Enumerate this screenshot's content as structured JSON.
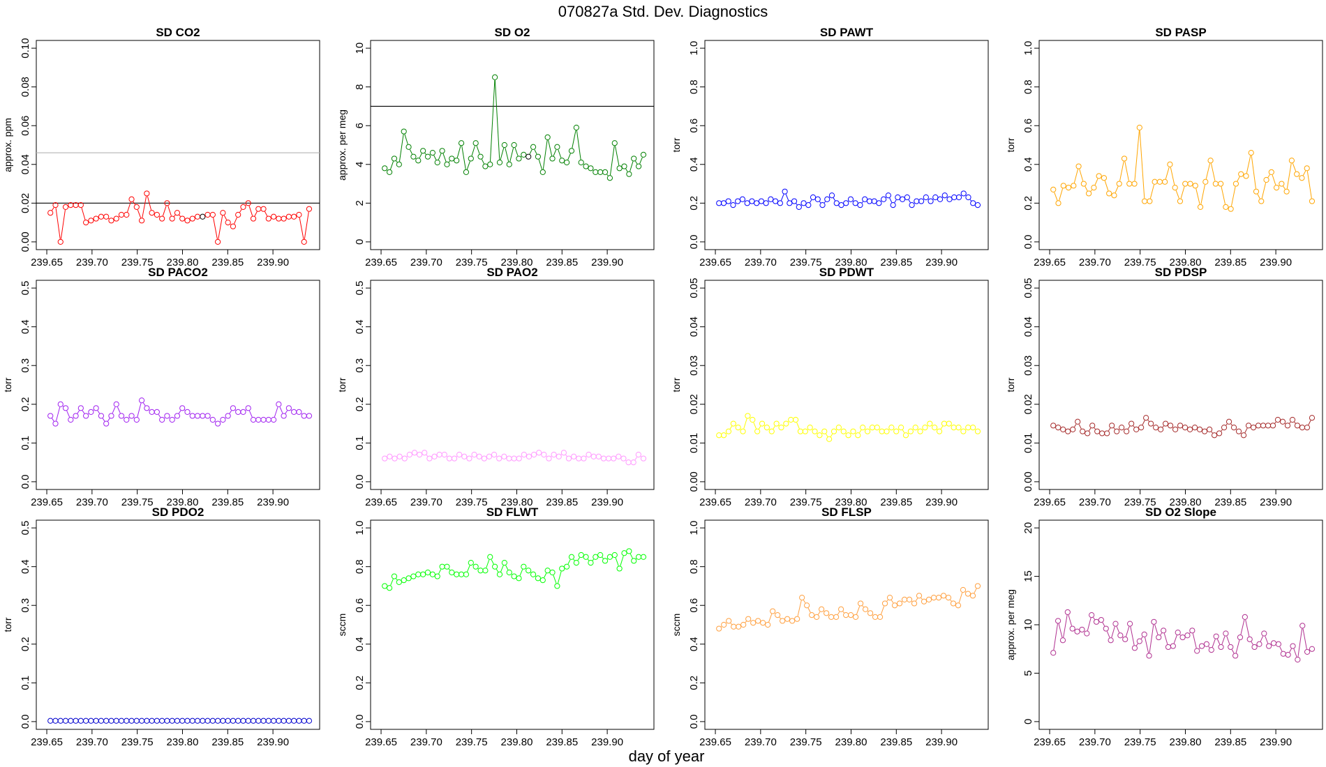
{
  "figure": {
    "title": "070827a   Std. Dev. Diagnostics",
    "xlabel": "day of year"
  },
  "chart_data": [
    {
      "type": "line",
      "title": "SD CO2",
      "ylabel": "approx. ppm",
      "color": "#ff0000",
      "ylim": [
        0,
        0.1
      ],
      "yticks": [
        "0.00",
        "0.02",
        "0.04",
        "0.06",
        "0.08",
        "0.10"
      ],
      "xlim": [
        239.65,
        239.94
      ],
      "xticks": [
        "239.65",
        "239.70",
        "239.75",
        "239.80",
        "239.85",
        "239.90"
      ],
      "hlines": [
        {
          "y": 0.02,
          "color": "#000000"
        },
        {
          "y": 0.046,
          "color": "#bbbbbb"
        }
      ],
      "highlight": [
        30,
        58
      ],
      "series": [
        {
          "values": [
            0.015,
            0.019,
            0.0,
            0.018,
            0.019,
            0.019,
            0.019,
            0.01,
            0.011,
            0.012,
            0.013,
            0.013,
            0.011,
            0.012,
            0.014,
            0.014,
            0.022,
            0.018,
            0.011,
            0.025,
            0.015,
            0.014,
            0.012,
            0.02,
            0.012,
            0.015,
            0.012,
            0.011,
            0.012,
            0.013,
            0.013,
            0.014,
            0.014,
            0.0,
            0.015,
            0.01,
            0.008,
            0.014,
            0.018,
            0.02,
            0.012,
            0.017,
            0.017,
            0.012,
            0.013,
            0.012,
            0.012,
            0.013,
            0.013,
            0.014,
            0.0,
            0.017
          ]
        }
      ]
    },
    {
      "type": "line",
      "title": "SD O2",
      "ylabel": "approx. per meg",
      "color": "#008000",
      "ylim": [
        0,
        10
      ],
      "yticks": [
        "0",
        "2",
        "4",
        "6",
        "8",
        "10"
      ],
      "xlim": [
        239.65,
        239.94
      ],
      "xticks": [
        "239.65",
        "239.70",
        "239.75",
        "239.80",
        "239.85",
        "239.90"
      ],
      "hlines": [
        {
          "y": 7,
          "color": "#000000"
        }
      ],
      "highlight": [
        30
      ],
      "series": [
        {
          "values": [
            3.8,
            3.6,
            4.3,
            4.0,
            5.7,
            4.9,
            4.4,
            4.2,
            4.7,
            4.4,
            4.6,
            4.1,
            4.7,
            4.0,
            4.3,
            4.2,
            5.1,
            3.6,
            4.3,
            5.1,
            4.4,
            3.9,
            4.0,
            8.5,
            4.1,
            5.0,
            4.0,
            5.0,
            4.3,
            4.5,
            4.4,
            4.9,
            4.4,
            3.6,
            5.4,
            4.3,
            4.9,
            4.2,
            4.1,
            4.7,
            5.9,
            4.1,
            3.9,
            3.8,
            3.6,
            3.6,
            3.6,
            3.3,
            5.1,
            3.8,
            3.9,
            3.5,
            4.3,
            3.9,
            4.5
          ]
        }
      ]
    },
    {
      "type": "line",
      "title": "SD PAWT",
      "ylabel": "torr",
      "color": "#0000ff",
      "ylim": [
        0,
        1
      ],
      "yticks": [
        "0.0",
        "0.2",
        "0.4",
        "0.6",
        "0.8",
        "1.0"
      ],
      "xlim": [
        239.65,
        239.94
      ],
      "xticks": [
        "239.65",
        "239.70",
        "239.75",
        "239.80",
        "239.85",
        "239.90"
      ],
      "series": [
        {
          "values": [
            0.2,
            0.2,
            0.21,
            0.19,
            0.21,
            0.22,
            0.2,
            0.21,
            0.2,
            0.21,
            0.2,
            0.22,
            0.21,
            0.2,
            0.26,
            0.2,
            0.21,
            0.18,
            0.2,
            0.19,
            0.23,
            0.22,
            0.19,
            0.22,
            0.24,
            0.2,
            0.19,
            0.2,
            0.22,
            0.2,
            0.19,
            0.22,
            0.21,
            0.21,
            0.2,
            0.22,
            0.24,
            0.19,
            0.23,
            0.22,
            0.23,
            0.19,
            0.21,
            0.21,
            0.23,
            0.21,
            0.23,
            0.22,
            0.24,
            0.22,
            0.23,
            0.23,
            0.25,
            0.23,
            0.2,
            0.19
          ]
        }
      ]
    },
    {
      "type": "line",
      "title": "SD PASP",
      "ylabel": "torr",
      "color": "#ffa500",
      "ylim": [
        0,
        1
      ],
      "yticks": [
        "0.0",
        "0.2",
        "0.4",
        "0.6",
        "0.8",
        "1.0"
      ],
      "xlim": [
        239.65,
        239.94
      ],
      "xticks": [
        "239.65",
        "239.70",
        "239.75",
        "239.80",
        "239.85",
        "239.90"
      ],
      "series": [
        {
          "values": [
            0.27,
            0.2,
            0.29,
            0.28,
            0.29,
            0.39,
            0.3,
            0.25,
            0.28,
            0.34,
            0.33,
            0.25,
            0.24,
            0.3,
            0.43,
            0.3,
            0.3,
            0.59,
            0.21,
            0.21,
            0.31,
            0.31,
            0.31,
            0.4,
            0.28,
            0.21,
            0.3,
            0.3,
            0.29,
            0.18,
            0.31,
            0.42,
            0.3,
            0.3,
            0.18,
            0.17,
            0.3,
            0.35,
            0.34,
            0.46,
            0.26,
            0.21,
            0.32,
            0.36,
            0.28,
            0.3,
            0.26,
            0.42,
            0.35,
            0.33,
            0.38,
            0.21
          ]
        }
      ]
    },
    {
      "type": "line",
      "title": "SD PACO2",
      "ylabel": "torr",
      "color": "#a020f0",
      "ylim": [
        0,
        0.5
      ],
      "yticks": [
        "0.0",
        "0.1",
        "0.2",
        "0.3",
        "0.4",
        "0.5"
      ],
      "xlim": [
        239.65,
        239.94
      ],
      "xticks": [
        "239.65",
        "239.70",
        "239.75",
        "239.80",
        "239.85",
        "239.90"
      ],
      "series": [
        {
          "values": [
            0.17,
            0.15,
            0.2,
            0.19,
            0.16,
            0.17,
            0.19,
            0.17,
            0.18,
            0.19,
            0.17,
            0.15,
            0.17,
            0.2,
            0.17,
            0.16,
            0.17,
            0.16,
            0.21,
            0.19,
            0.18,
            0.18,
            0.16,
            0.17,
            0.16,
            0.17,
            0.19,
            0.18,
            0.17,
            0.17,
            0.17,
            0.17,
            0.16,
            0.15,
            0.16,
            0.17,
            0.19,
            0.18,
            0.18,
            0.19,
            0.16,
            0.16,
            0.16,
            0.16,
            0.16,
            0.2,
            0.17,
            0.19,
            0.18,
            0.18,
            0.17,
            0.17
          ]
        }
      ]
    },
    {
      "type": "line",
      "title": "SD PAO2",
      "ylabel": "torr",
      "color": "#ff99ff",
      "ylim": [
        0,
        0.5
      ],
      "yticks": [
        "0.0",
        "0.1",
        "0.2",
        "0.3",
        "0.4",
        "0.5"
      ],
      "xlim": [
        239.65,
        239.94
      ],
      "xticks": [
        "239.65",
        "239.70",
        "239.75",
        "239.80",
        "239.85",
        "239.90"
      ],
      "series": [
        {
          "values": [
            0.06,
            0.065,
            0.06,
            0.065,
            0.06,
            0.07,
            0.075,
            0.07,
            0.075,
            0.06,
            0.065,
            0.07,
            0.07,
            0.06,
            0.06,
            0.07,
            0.065,
            0.06,
            0.07,
            0.065,
            0.06,
            0.065,
            0.07,
            0.06,
            0.065,
            0.06,
            0.06,
            0.06,
            0.07,
            0.065,
            0.07,
            0.075,
            0.07,
            0.06,
            0.07,
            0.065,
            0.075,
            0.06,
            0.065,
            0.06,
            0.06,
            0.07,
            0.065,
            0.065,
            0.06,
            0.06,
            0.06,
            0.065,
            0.06,
            0.05,
            0.05,
            0.07,
            0.06
          ]
        }
      ]
    },
    {
      "type": "line",
      "title": "SD PDWT",
      "ylabel": "torr",
      "color": "#ffff00",
      "ylim": [
        0,
        0.05
      ],
      "yticks": [
        "0.00",
        "0.01",
        "0.02",
        "0.03",
        "0.04",
        "0.05"
      ],
      "xlim": [
        239.65,
        239.94
      ],
      "xticks": [
        "239.65",
        "239.70",
        "239.75",
        "239.80",
        "239.85",
        "239.90"
      ],
      "series": [
        {
          "values": [
            0.012,
            0.012,
            0.013,
            0.015,
            0.014,
            0.013,
            0.017,
            0.016,
            0.013,
            0.015,
            0.014,
            0.013,
            0.015,
            0.014,
            0.015,
            0.016,
            0.016,
            0.013,
            0.013,
            0.014,
            0.013,
            0.012,
            0.013,
            0.011,
            0.013,
            0.014,
            0.013,
            0.012,
            0.013,
            0.012,
            0.014,
            0.013,
            0.014,
            0.014,
            0.013,
            0.013,
            0.014,
            0.013,
            0.014,
            0.012,
            0.013,
            0.014,
            0.013,
            0.014,
            0.015,
            0.014,
            0.013,
            0.015,
            0.015,
            0.014,
            0.014,
            0.013,
            0.014,
            0.014,
            0.013
          ]
        }
      ]
    },
    {
      "type": "line",
      "title": "SD PDSP",
      "ylabel": "torr",
      "color": "#a52a2a",
      "ylim": [
        0,
        0.05
      ],
      "yticks": [
        "0.00",
        "0.01",
        "0.02",
        "0.03",
        "0.04",
        "0.05"
      ],
      "xlim": [
        239.65,
        239.94
      ],
      "xticks": [
        "239.65",
        "239.70",
        "239.75",
        "239.80",
        "239.85",
        "239.90"
      ],
      "series": [
        {
          "values": [
            0.0145,
            0.014,
            0.0135,
            0.013,
            0.0135,
            0.0155,
            0.013,
            0.0125,
            0.0145,
            0.013,
            0.0125,
            0.0125,
            0.0145,
            0.013,
            0.014,
            0.013,
            0.015,
            0.0135,
            0.014,
            0.0165,
            0.015,
            0.014,
            0.0135,
            0.015,
            0.0145,
            0.0135,
            0.0145,
            0.014,
            0.0135,
            0.014,
            0.0135,
            0.013,
            0.0135,
            0.012,
            0.0125,
            0.014,
            0.0155,
            0.014,
            0.013,
            0.012,
            0.0145,
            0.014,
            0.0145,
            0.0145,
            0.0145,
            0.0145,
            0.016,
            0.0155,
            0.0145,
            0.016,
            0.0145,
            0.014,
            0.014,
            0.0165
          ]
        }
      ]
    },
    {
      "type": "line",
      "title": "SD PDO2",
      "ylabel": "torr",
      "color": "#0000cd",
      "ylim": [
        0,
        0.5
      ],
      "yticks": [
        "0.0",
        "0.1",
        "0.2",
        "0.3",
        "0.4",
        "0.5"
      ],
      "xlim": [
        239.65,
        239.94
      ],
      "xticks": [
        "239.65",
        "239.70",
        "239.75",
        "239.80",
        "239.85",
        "239.90"
      ],
      "series": [
        {
          "values": [
            0.002,
            0.002,
            0.002,
            0.002,
            0.002,
            0.002,
            0.002,
            0.002,
            0.002,
            0.002,
            0.002,
            0.002,
            0.002,
            0.002,
            0.002,
            0.002,
            0.002,
            0.002,
            0.002,
            0.002,
            0.002,
            0.002,
            0.002,
            0.002,
            0.002,
            0.002,
            0.002,
            0.002,
            0.002,
            0.002,
            0.002,
            0.002,
            0.002,
            0.002,
            0.002,
            0.002,
            0.002,
            0.002,
            0.002,
            0.002,
            0.002,
            0.002,
            0.002,
            0.002,
            0.002,
            0.002,
            0.002,
            0.002,
            0.002,
            0.002,
            0.002,
            0.002
          ]
        }
      ]
    },
    {
      "type": "line",
      "title": "SD FLWT",
      "ylabel": "sccm",
      "color": "#00ff00",
      "ylim": [
        0,
        1
      ],
      "yticks": [
        "0.0",
        "0.2",
        "0.4",
        "0.6",
        "0.8",
        "1.0"
      ],
      "xlim": [
        239.65,
        239.94
      ],
      "xticks": [
        "239.65",
        "239.70",
        "239.75",
        "239.80",
        "239.85",
        "239.90"
      ],
      "series": [
        {
          "values": [
            0.7,
            0.69,
            0.75,
            0.72,
            0.73,
            0.74,
            0.75,
            0.76,
            0.76,
            0.77,
            0.76,
            0.75,
            0.8,
            0.8,
            0.77,
            0.76,
            0.76,
            0.76,
            0.82,
            0.8,
            0.78,
            0.78,
            0.85,
            0.8,
            0.76,
            0.82,
            0.77,
            0.75,
            0.74,
            0.8,
            0.78,
            0.76,
            0.74,
            0.73,
            0.78,
            0.77,
            0.7,
            0.79,
            0.8,
            0.85,
            0.82,
            0.86,
            0.85,
            0.82,
            0.85,
            0.86,
            0.83,
            0.85,
            0.86,
            0.79,
            0.87,
            0.88,
            0.83,
            0.85,
            0.85
          ]
        }
      ]
    },
    {
      "type": "line",
      "title": "SD FLSP",
      "ylabel": "sccm",
      "color": "#ffa040",
      "ylim": [
        0,
        1
      ],
      "yticks": [
        "0.0",
        "0.2",
        "0.4",
        "0.6",
        "0.8",
        "1.0"
      ],
      "xlim": [
        239.65,
        239.94
      ],
      "xticks": [
        "239.65",
        "239.70",
        "239.75",
        "239.80",
        "239.85",
        "239.90"
      ],
      "series": [
        {
          "values": [
            0.48,
            0.5,
            0.52,
            0.49,
            0.49,
            0.5,
            0.53,
            0.51,
            0.52,
            0.51,
            0.5,
            0.57,
            0.55,
            0.52,
            0.53,
            0.52,
            0.53,
            0.64,
            0.6,
            0.55,
            0.54,
            0.58,
            0.56,
            0.54,
            0.54,
            0.58,
            0.55,
            0.55,
            0.54,
            0.61,
            0.58,
            0.56,
            0.54,
            0.54,
            0.61,
            0.64,
            0.6,
            0.61,
            0.63,
            0.63,
            0.61,
            0.65,
            0.62,
            0.63,
            0.64,
            0.64,
            0.65,
            0.64,
            0.61,
            0.6,
            0.68,
            0.66,
            0.65,
            0.7
          ]
        }
      ]
    },
    {
      "type": "line",
      "title": "SD O2 Slope",
      "ylabel": "approx. per meg",
      "color": "#b03090",
      "ylim": [
        0,
        20
      ],
      "yticks": [
        "0",
        "5",
        "10",
        "15",
        "20"
      ],
      "xlim": [
        239.65,
        239.94
      ],
      "xticks": [
        "239.65",
        "239.70",
        "239.75",
        "239.80",
        "239.85",
        "239.90"
      ],
      "series": [
        {
          "values": [
            7.1,
            10.4,
            8.4,
            11.3,
            9.6,
            9.3,
            9.5,
            9.1,
            11.0,
            10.3,
            10.5,
            9.6,
            8.4,
            10.1,
            8.9,
            8.5,
            10.1,
            7.6,
            8.3,
            9.0,
            6.8,
            10.3,
            8.7,
            9.4,
            7.7,
            7.8,
            9.2,
            8.7,
            8.9,
            9.4,
            7.3,
            7.8,
            8.0,
            7.4,
            8.8,
            7.7,
            9.1,
            7.7,
            6.8,
            8.7,
            10.8,
            8.5,
            7.7,
            8.0,
            9.1,
            7.8,
            8.1,
            8.0,
            7.0,
            6.9,
            7.8,
            6.4,
            9.9,
            7.2,
            7.5
          ]
        }
      ]
    }
  ]
}
